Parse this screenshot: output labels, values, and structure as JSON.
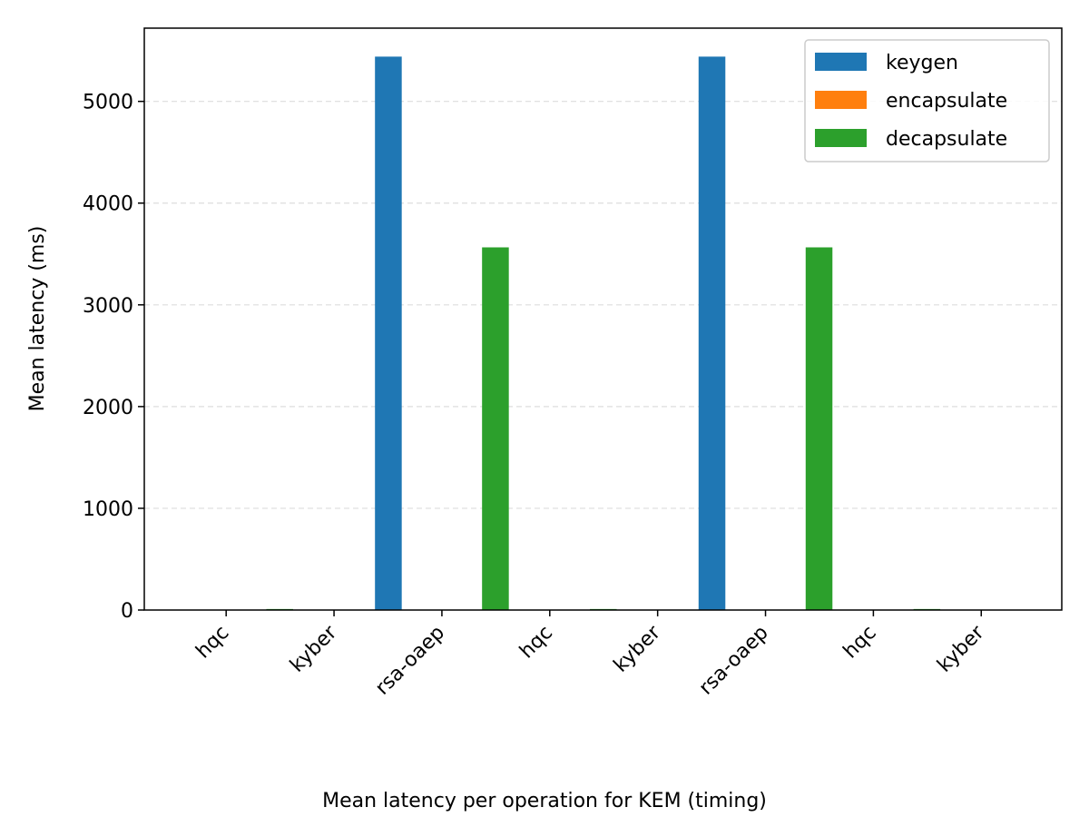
{
  "chart_data": {
    "type": "bar",
    "title": "",
    "caption": "Mean latency per operation for KEM (timing)",
    "xlabel": "",
    "ylabel": "Mean latency (ms)",
    "categories": [
      "hqc",
      "kyber",
      "rsa-oaep",
      "hqc",
      "kyber",
      "rsa-oaep",
      "hqc",
      "kyber"
    ],
    "series": [
      {
        "name": "keygen",
        "color": "#1f77b4",
        "values": [
          0.3,
          0.1,
          5440,
          0.3,
          0.1,
          5440,
          0.3,
          0.1
        ]
      },
      {
        "name": "encapsulate",
        "color": "#ff7f0e",
        "values": [
          0.4,
          0.1,
          1.5,
          0.4,
          0.1,
          1.5,
          0.4,
          0.1
        ]
      },
      {
        "name": "decapsulate",
        "color": "#2ca02c",
        "values": [
          10,
          0.2,
          3565,
          10,
          0.2,
          3565,
          10,
          0.2
        ]
      }
    ],
    "ylim": [
      0,
      5720
    ],
    "yticks": [
      0,
      1000,
      2000,
      3000,
      4000,
      5000
    ],
    "grid": "y-dashed",
    "legend": "top-right"
  }
}
